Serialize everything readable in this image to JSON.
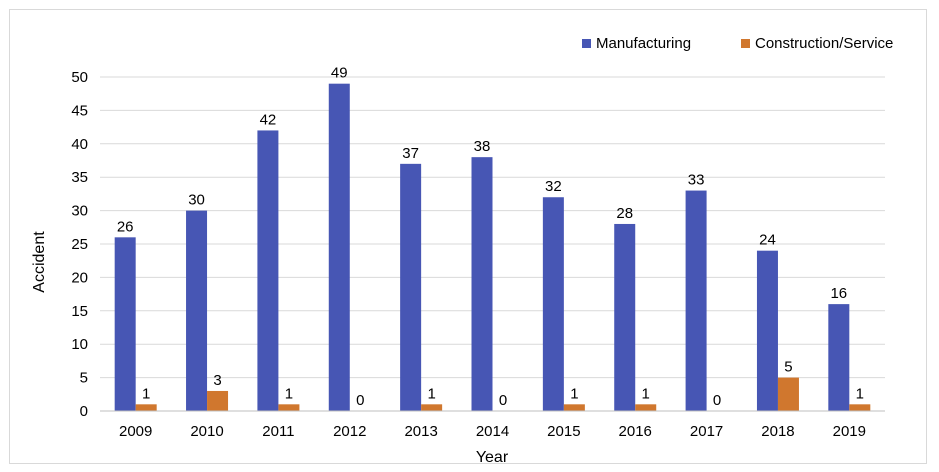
{
  "chart_data": {
    "type": "bar",
    "title": "",
    "xlabel": "Year",
    "ylabel": "Accident",
    "ylim": [
      0,
      50
    ],
    "yticks": [
      0,
      5,
      10,
      15,
      20,
      25,
      30,
      35,
      40,
      45,
      50
    ],
    "grid": true,
    "legend_position": "top-right",
    "categories": [
      "2009",
      "2010",
      "2011",
      "2012",
      "2013",
      "2014",
      "2015",
      "2016",
      "2017",
      "2018",
      "2019"
    ],
    "series": [
      {
        "name": "Manufacturing",
        "color": "#4756b4",
        "values": [
          26,
          30,
          42,
          49,
          37,
          38,
          32,
          28,
          33,
          24,
          16
        ]
      },
      {
        "name": "Construction/Service",
        "color": "#d0772e",
        "values": [
          1,
          3,
          1,
          0,
          1,
          0,
          1,
          1,
          0,
          5,
          1
        ]
      }
    ]
  }
}
